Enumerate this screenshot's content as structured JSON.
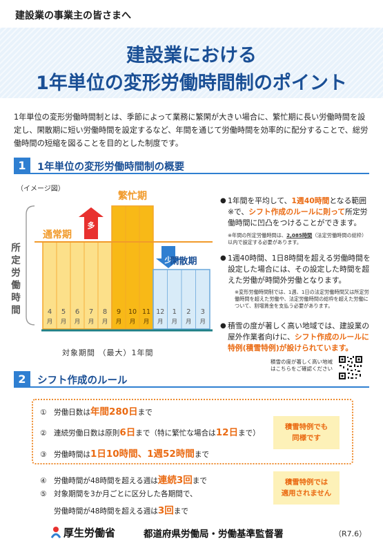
{
  "header": {
    "audience": "建設業の事業主の皆さまへ",
    "title_line1": "建設業における",
    "title_line2": "1年単位の変形労働時間制のポイント"
  },
  "intro": "1年単位の変形労働時間制とは、季節によって業務に繁閑が大きい場合に、繁忙期に長い労働時間を設定し、閑散期に短い労働時間を設定するなど、年間を通じて労働時間を効率的に配分することで、総労働時間の短縮を図ることを目的とした制度です。",
  "section1": {
    "num": "1",
    "title": "1年単位の変形労働時間制の概要",
    "image_label": "（イメージ図）",
    "y_label": "所定労働時間",
    "x_caption": "対象期間 （最大）1年間",
    "labels": {
      "normal": "通常期",
      "busy": "繁忙期",
      "slow": "閑散期",
      "more": "多",
      "less": "少"
    },
    "bullets": [
      {
        "pre": "1年間を平均して、",
        "hl1": "1週40時間",
        "mid": "となる範囲※で、",
        "hl2": "シフト作成のルールに則って",
        "post": "所定労働時間に凹凸をつけることができます。"
      },
      {
        "text": "1週40時間、1日8時間を超える労働時間を設定した場合には、その設定した時間を超えた労働が時間外労働となります。"
      },
      {
        "pre": "積雪の度が著しく高い地域では、建設業の屋外作業者向けに、",
        "hl": "シフト作成のルールに特例(積雪特例)が設けられています。"
      }
    ],
    "note1_a": "※年間の所定労働時間は、",
    "note1_b": "2,085時間",
    "note1_c": "（法定労働時間の総枠）以内で設定する必要があります。",
    "note2": "※変形労働時間制では、1週、1日の法定労働時間又は所定労働時間を超えた労働や、法定労働時間の総枠を超えた労働について、割増賃金を支払う必要があります。",
    "qr_text": "積雪の度が著しく高い地域はこちらをご確認ください"
  },
  "chart_data": {
    "type": "bar",
    "categories": [
      "4",
      "5",
      "6",
      "7",
      "8",
      "9",
      "10",
      "11",
      "12",
      "1",
      "2",
      "3"
    ],
    "category_unit": "月",
    "series": [
      {
        "name": "通常期",
        "months": [
          "4",
          "5",
          "6",
          "7",
          "8"
        ]
      },
      {
        "name": "繁忙期",
        "months": [
          "9",
          "10",
          "11"
        ]
      },
      {
        "name": "閑散期",
        "months": [
          "12",
          "1",
          "2",
          "3"
        ]
      }
    ],
    "ylabel": "所定労働時間",
    "xlabel": "対象期間 （最大）1年間",
    "colors": {
      "normal": "#fce08a",
      "busy": "#f8b917",
      "slow": "#d8ebf8",
      "arrow_up": "#e8312f",
      "arrow_down": "#2f7fd1",
      "avg_line": "#f19a2a"
    }
  },
  "section2": {
    "num": "2",
    "title": "シフト作成のルール",
    "rules": [
      {
        "num": "①",
        "a": "労働日数は",
        "b": "年間280日",
        "c": "まで"
      },
      {
        "num": "②",
        "a": "連続労働日数は原則",
        "b": "6日",
        "c": "まで（特に繁忙な場合は",
        "d": "12日",
        "e": "まで）"
      },
      {
        "num": "③",
        "a": "労働時間は",
        "b": "1日10時間、1週52時間",
        "c": "まで"
      },
      {
        "num": "④",
        "a": "労働時間が48時間を超える週は",
        "b": "連続3回",
        "c": "まで"
      },
      {
        "num": "⑤",
        "a": "対象期間を3か月ごとに区分した各期間で、",
        "a2": "労働時間が48時間を超える週は",
        "b": "3回",
        "c": "まで"
      }
    ],
    "badge_yes": [
      "積雪特例でも",
      "同様です"
    ],
    "badge_no": [
      "積雪特例では",
      "適用されません"
    ]
  },
  "footer": {
    "ministry": "厚生労働省",
    "org": "都道府県労働局・労働基準監督署",
    "date": "（R7.6）"
  }
}
